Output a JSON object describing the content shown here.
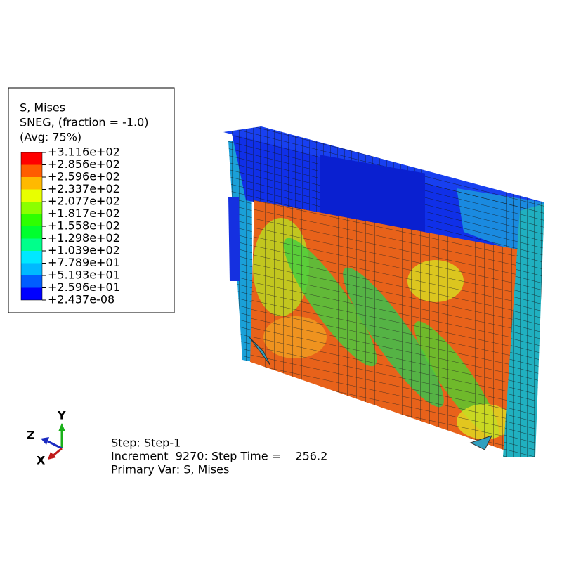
{
  "legend": {
    "title": [
      "S, Mises",
      "SNEG, (fraction = -1.0)",
      "(Avg: 75%)"
    ],
    "levels": [
      "+3.116e+02",
      "+2.856e+02",
      "+2.596e+02",
      "+2.337e+02",
      "+2.077e+02",
      "+1.817e+02",
      "+1.558e+02",
      "+1.298e+02",
      "+1.039e+02",
      "+7.789e+01",
      "+5.193e+01",
      "+2.596e+01",
      "+2.437e-08"
    ],
    "colors": [
      "#ff0000",
      "#ff5d00",
      "#ffb900",
      "#e8ff00",
      "#8bff00",
      "#2eff00",
      "#00ff2e",
      "#00ff8b",
      "#00e8ff",
      "#00b9ff",
      "#005dff",
      "#0000ff"
    ]
  },
  "triad": {
    "y": "Y",
    "z": "Z",
    "x": "X"
  },
  "status": [
    "Step: Step-1",
    "Increment  9270: Step Time =    256.2",
    "Primary Var: S, Mises"
  ]
}
